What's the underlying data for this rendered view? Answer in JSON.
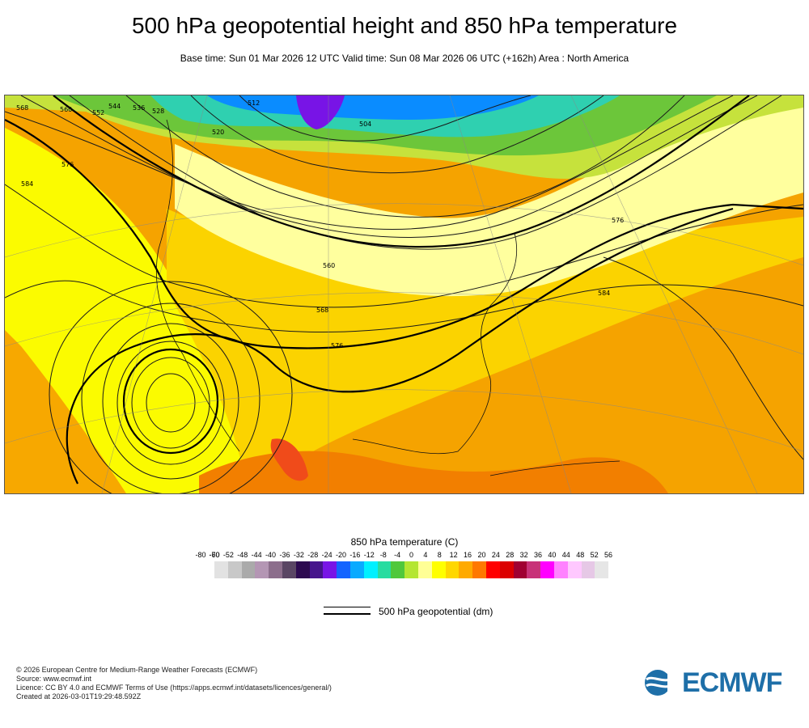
{
  "title": "500 hPa geopotential height and 850 hPa temperature",
  "subtitle": "Base time: Sun 01 Mar 2026 12 UTC Valid time: Sun 08 Mar 2026 06 UTC (+162h) Area : North America",
  "map": {
    "contour_labels": [
      "568",
      "560",
      "552",
      "544",
      "536",
      "528",
      "520",
      "512",
      "504",
      "576",
      "584",
      "576",
      "568",
      "560",
      "584",
      "576"
    ],
    "colors": {
      "cold": "#0a8cff",
      "teal": "#2fd0b0",
      "green": "#6cc63a",
      "lightgreen": "#c6e23c",
      "pale": "#ffff9e",
      "yellow": "#fbfb00",
      "gold": "#fbd300",
      "orange": "#f7a800",
      "deep": "#f27f00",
      "red": "#f04b1a",
      "ocean": "#f5a300"
    }
  },
  "colorbar": {
    "title": "850 hPa temperature (C)",
    "ticks": [
      "-80",
      "-70",
      "-60",
      "-52",
      "-48",
      "-44",
      "-40",
      "-36",
      "-32",
      "-28",
      "-24",
      "-20",
      "-16",
      "-12",
      "-8",
      "-4",
      "0",
      "4",
      "8",
      "12",
      "16",
      "20",
      "24",
      "28",
      "32",
      "36",
      "40",
      "44",
      "48",
      "52",
      "56"
    ],
    "colors": [
      "#e2e2e2",
      "#c8c8c8",
      "#aaaaaa",
      "#b496b4",
      "#8c6e8c",
      "#5a4664",
      "#2d0a50",
      "#46148c",
      "#7814e6",
      "#1464ff",
      "#0aaaff",
      "#00f0ff",
      "#28dca0",
      "#50c83c",
      "#b4e632",
      "#ffff96",
      "#ffff00",
      "#ffd700",
      "#ffaa00",
      "#ff7800",
      "#ff0000",
      "#dc0000",
      "#a00032",
      "#c83278",
      "#ff00ff",
      "#ff82ff",
      "#ffc8ff",
      "#e6c8e6",
      "#e6e6e6"
    ]
  },
  "legend": {
    "geopotential_label": "500 hPa geopotential (dm)"
  },
  "credits": {
    "line1": "© 2026 European Centre for Medium-Range Weather Forecasts (ECMWF)",
    "line2": "Source: www.ecmwf.int",
    "line3": "Licence: CC BY 4.0 and ECMWF Terms of Use (https://apps.ecmwf.int/datasets/licences/general/)",
    "line4": "Created at 2026-03-01T19:29:48.592Z"
  },
  "logo": {
    "text": "ECMWF",
    "icon": "ecmwf-logo-icon"
  }
}
